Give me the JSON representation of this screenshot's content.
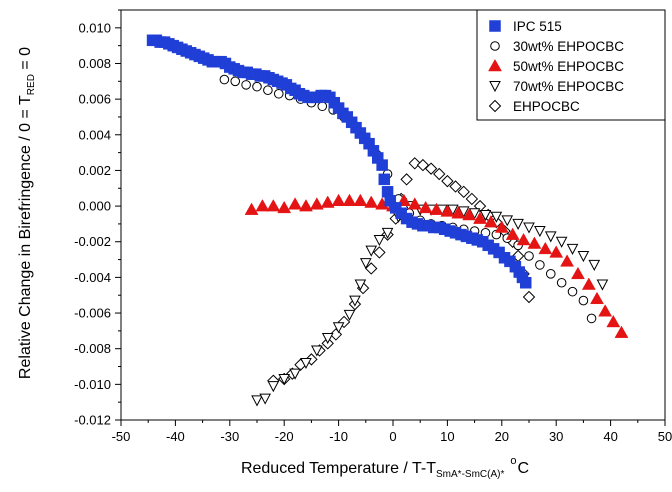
{
  "chart_data": {
    "type": "scatter",
    "xlabel": {
      "main": "Reduced Temperature / T-T",
      "sub": "SmA*-SmC(A)*",
      "sup": "o",
      "unit": "C"
    },
    "ylabel": {
      "main": "Relative Change in Birefringence / 0 = T",
      "sub": "RED",
      "tail": " = 0"
    },
    "xlim": [
      -50,
      50
    ],
    "ylim": [
      -0.012,
      0.011
    ],
    "xticks": [
      -50,
      -40,
      -30,
      -20,
      -10,
      0,
      10,
      20,
      30,
      40,
      50
    ],
    "yticks": [
      -0.012,
      -0.01,
      -0.008,
      -0.006,
      -0.004,
      -0.002,
      0.0,
      0.002,
      0.004,
      0.006,
      0.008,
      0.01
    ],
    "ytick_labels": [
      "-0.012",
      "-0.010",
      "-0.008",
      "-0.006",
      "-0.004",
      "-0.002",
      "0.000",
      "0.002",
      "0.004",
      "0.006",
      "0.008",
      "0.010"
    ],
    "xtick_labels": [
      "-50",
      "-40",
      "-30",
      "-20",
      "-10",
      "0",
      "10",
      "20",
      "30",
      "40",
      "50"
    ],
    "grid": false,
    "legend_position": "top-right",
    "series": [
      {
        "name": "IPC 515",
        "marker": "filled-square",
        "color": "#1f3fd6",
        "points": [
          [
            -44.2,
            0.0093
          ],
          [
            -43.5,
            0.0093
          ],
          [
            -42.8,
            0.0092
          ],
          [
            -42.0,
            0.0092
          ],
          [
            -41.2,
            0.0091
          ],
          [
            -40.4,
            0.009
          ],
          [
            -39.6,
            0.0089
          ],
          [
            -38.8,
            0.0088
          ],
          [
            -38.0,
            0.0087
          ],
          [
            -37.2,
            0.0086
          ],
          [
            -36.4,
            0.0085
          ],
          [
            -35.6,
            0.0084
          ],
          [
            -34.8,
            0.0083
          ],
          [
            -34.0,
            0.0082
          ],
          [
            -33.2,
            0.0081
          ],
          [
            -32.4,
            0.0081
          ],
          [
            -31.6,
            0.0081
          ],
          [
            -30.8,
            0.008
          ],
          [
            -30.0,
            0.0078
          ],
          [
            -29.2,
            0.0077
          ],
          [
            -28.4,
            0.0076
          ],
          [
            -27.6,
            0.0075
          ],
          [
            -26.8,
            0.0075
          ],
          [
            -26.0,
            0.0074
          ],
          [
            -25.2,
            0.0074
          ],
          [
            -24.4,
            0.0073
          ],
          [
            -23.6,
            0.0073
          ],
          [
            -22.8,
            0.0072
          ],
          [
            -22.0,
            0.0071
          ],
          [
            -21.2,
            0.007
          ],
          [
            -20.4,
            0.0069
          ],
          [
            -19.6,
            0.0068
          ],
          [
            -18.8,
            0.0066
          ],
          [
            -18.0,
            0.0065
          ],
          [
            -17.2,
            0.0063
          ],
          [
            -16.4,
            0.0062
          ],
          [
            -15.6,
            0.0061
          ],
          [
            -14.8,
            0.0061
          ],
          [
            -14.0,
            0.0061
          ],
          [
            -13.2,
            0.0062
          ],
          [
            -12.4,
            0.0062
          ],
          [
            -11.6,
            0.0061
          ],
          [
            -10.8,
            0.0058
          ],
          [
            -10.0,
            0.0055
          ],
          [
            -9.2,
            0.0052
          ],
          [
            -8.4,
            0.005
          ],
          [
            -7.6,
            0.0047
          ],
          [
            -6.8,
            0.0044
          ],
          [
            -6.0,
            0.0041
          ],
          [
            -5.2,
            0.0038
          ],
          [
            -4.4,
            0.0035
          ],
          [
            -3.6,
            0.0031
          ],
          [
            -2.8,
            0.0027
          ],
          [
            -2.0,
            0.0023
          ],
          [
            -1.6,
            0.0015
          ],
          [
            -1.0,
            0.0008
          ],
          [
            -0.5,
            0.0003
          ],
          [
            0.5,
            -0.0001
          ],
          [
            1.5,
            -0.0004
          ],
          [
            2.5,
            -0.0007
          ],
          [
            3.5,
            -0.0009
          ],
          [
            4.5,
            -0.001
          ],
          [
            5.5,
            -0.0011
          ],
          [
            6.5,
            -0.0011
          ],
          [
            7.5,
            -0.0012
          ],
          [
            8.5,
            -0.0012
          ],
          [
            9.5,
            -0.0013
          ],
          [
            10.5,
            -0.0014
          ],
          [
            11.5,
            -0.0015
          ],
          [
            12.5,
            -0.0016
          ],
          [
            13.5,
            -0.0017
          ],
          [
            14.5,
            -0.0018
          ],
          [
            15.5,
            -0.0019
          ],
          [
            16.5,
            -0.002
          ],
          [
            17.5,
            -0.0022
          ],
          [
            18.5,
            -0.0024
          ],
          [
            19.5,
            -0.0026
          ],
          [
            20.5,
            -0.0029
          ],
          [
            21.5,
            -0.0031
          ],
          [
            22.5,
            -0.0034
          ],
          [
            23.2,
            -0.0037
          ],
          [
            23.8,
            -0.004
          ],
          [
            24.4,
            -0.0043
          ]
        ]
      },
      {
        "name": "30wt% EHPOCBC",
        "marker": "open-circle",
        "color": "#000000",
        "points": [
          [
            -31.0,
            0.0071
          ],
          [
            -29.0,
            0.007
          ],
          [
            -27.0,
            0.0068
          ],
          [
            -25.0,
            0.0067
          ],
          [
            -23.0,
            0.0065
          ],
          [
            -21.0,
            0.0063
          ],
          [
            -19.0,
            0.0062
          ],
          [
            -17.0,
            0.006
          ],
          [
            -15.0,
            0.0058
          ],
          [
            -13.0,
            0.0056
          ],
          [
            -11.0,
            0.0054
          ],
          [
            -9.0,
            0.005
          ],
          [
            -7.0,
            0.0045
          ],
          [
            -5.0,
            0.0038
          ],
          [
            -3.0,
            0.0029
          ],
          [
            -1.0,
            0.0018
          ],
          [
            1.0,
            0.0004
          ],
          [
            3.0,
            -0.0004
          ],
          [
            5.0,
            -0.0008
          ],
          [
            7.0,
            -0.001
          ],
          [
            9.0,
            -0.0011
          ],
          [
            11.0,
            -0.0012
          ],
          [
            13.0,
            -0.0013
          ],
          [
            15.0,
            -0.0014
          ],
          [
            17.0,
            -0.0015
          ],
          [
            19.0,
            -0.0016
          ],
          [
            21.0,
            -0.0018
          ],
          [
            23.0,
            -0.0022
          ],
          [
            25.0,
            -0.0028
          ],
          [
            27.0,
            -0.0033
          ],
          [
            29.0,
            -0.0038
          ],
          [
            31.0,
            -0.0043
          ],
          [
            33.0,
            -0.0048
          ],
          [
            35.0,
            -0.0053
          ],
          [
            36.5,
            -0.0063
          ]
        ]
      },
      {
        "name": "50wt% EHPOCBC",
        "marker": "filled-triangle-up",
        "color": "#e51414",
        "points": [
          [
            -26.0,
            -0.0002
          ],
          [
            -24.0,
            0.0
          ],
          [
            -22.0,
            0.0
          ],
          [
            -20.0,
            -0.0001
          ],
          [
            -18.0,
            0.0001
          ],
          [
            -16.0,
            0.0
          ],
          [
            -14.0,
            0.0001
          ],
          [
            -12.0,
            0.0002
          ],
          [
            -10.0,
            0.0003
          ],
          [
            -8.0,
            0.0003
          ],
          [
            -6.0,
            0.0003
          ],
          [
            -4.0,
            0.0002
          ],
          [
            -2.0,
            0.0001
          ],
          [
            0.0,
            0.0
          ],
          [
            2.0,
            0.0003
          ],
          [
            4.0,
            0.0001
          ],
          [
            6.0,
            -0.0001
          ],
          [
            8.0,
            -0.0002
          ],
          [
            10.0,
            -0.0003
          ],
          [
            12.0,
            -0.0004
          ],
          [
            14.0,
            -0.0005
          ],
          [
            16.0,
            -0.0007
          ],
          [
            18.0,
            -0.0009
          ],
          [
            20.0,
            -0.0012
          ],
          [
            22.0,
            -0.0016
          ],
          [
            24.0,
            -0.0019
          ],
          [
            26.0,
            -0.0021
          ],
          [
            28.0,
            -0.0024
          ],
          [
            30.0,
            -0.0026
          ],
          [
            32.0,
            -0.0031
          ],
          [
            34.0,
            -0.0038
          ],
          [
            36.0,
            -0.0044
          ],
          [
            37.5,
            -0.0052
          ],
          [
            39.0,
            -0.0059
          ],
          [
            40.5,
            -0.0065
          ],
          [
            42.0,
            -0.0071
          ]
        ]
      },
      {
        "name": "70wt% EHPOCBC",
        "marker": "open-triangle-down",
        "color": "#000000",
        "points": [
          [
            -25.0,
            -0.0109
          ],
          [
            -23.5,
            -0.0108
          ],
          [
            -22.0,
            -0.0101
          ],
          [
            -20.0,
            -0.0097
          ],
          [
            -18.0,
            -0.0094
          ],
          [
            -16.0,
            -0.0088
          ],
          [
            -14.0,
            -0.0081
          ],
          [
            -12.0,
            -0.0074
          ],
          [
            -10.0,
            -0.0068
          ],
          [
            -8.0,
            -0.0061
          ],
          [
            -7.0,
            -0.0053
          ],
          [
            -6.0,
            -0.0044
          ],
          [
            -5.0,
            -0.0032
          ],
          [
            -4.0,
            -0.0025
          ],
          [
            -2.5,
            -0.0019
          ],
          [
            -1.0,
            -0.0015
          ],
          [
            1.0,
            -0.0006
          ],
          [
            3.0,
            0.0
          ],
          [
            5.0,
            -0.0002
          ],
          [
            7.0,
            -0.0002
          ],
          [
            9.0,
            -0.0002
          ],
          [
            11.0,
            -0.0002
          ],
          [
            13.0,
            -0.0003
          ],
          [
            15.0,
            -0.0004
          ],
          [
            17.0,
            -0.0005
          ],
          [
            19.0,
            -0.0006
          ],
          [
            21.0,
            -0.0008
          ],
          [
            23.0,
            -0.001
          ],
          [
            25.0,
            -0.0012
          ],
          [
            27.0,
            -0.0014
          ],
          [
            29.0,
            -0.0017
          ],
          [
            31.0,
            -0.002
          ],
          [
            33.0,
            -0.0024
          ],
          [
            35.0,
            -0.0028
          ],
          [
            37.0,
            -0.0033
          ],
          [
            38.5,
            -0.0044
          ]
        ]
      },
      {
        "name": "EHPOCBC",
        "marker": "open-diamond",
        "color": "#000000",
        "points": [
          [
            -22.0,
            -0.0098
          ],
          [
            -20.0,
            -0.0097
          ],
          [
            -18.5,
            -0.0094
          ],
          [
            -17.0,
            -0.0089
          ],
          [
            -15.0,
            -0.0086
          ],
          [
            -13.5,
            -0.0081
          ],
          [
            -12.0,
            -0.0077
          ],
          [
            -10.5,
            -0.0072
          ],
          [
            -9.0,
            -0.0065
          ],
          [
            -7.0,
            -0.0055
          ],
          [
            -5.5,
            -0.0046
          ],
          [
            -4.0,
            -0.0035
          ],
          [
            -2.5,
            -0.0026
          ],
          [
            -1.0,
            -0.0016
          ],
          [
            0.5,
            -0.0007
          ],
          [
            1.5,
            0.0004
          ],
          [
            2.5,
            0.0015
          ],
          [
            4.0,
            0.0024
          ],
          [
            5.5,
            0.0023
          ],
          [
            7.0,
            0.0021
          ],
          [
            8.5,
            0.0018
          ],
          [
            10.0,
            0.0014
          ],
          [
            11.5,
            0.0011
          ],
          [
            13.0,
            0.0008
          ],
          [
            14.5,
            0.0004
          ],
          [
            16.0,
            0.0
          ],
          [
            17.5,
            -0.0005
          ],
          [
            19.0,
            -0.0009
          ],
          [
            20.5,
            -0.0014
          ],
          [
            22.0,
            -0.002
          ],
          [
            23.0,
            -0.0028
          ],
          [
            24.0,
            -0.0038
          ],
          [
            25.0,
            -0.0051
          ]
        ]
      }
    ]
  }
}
